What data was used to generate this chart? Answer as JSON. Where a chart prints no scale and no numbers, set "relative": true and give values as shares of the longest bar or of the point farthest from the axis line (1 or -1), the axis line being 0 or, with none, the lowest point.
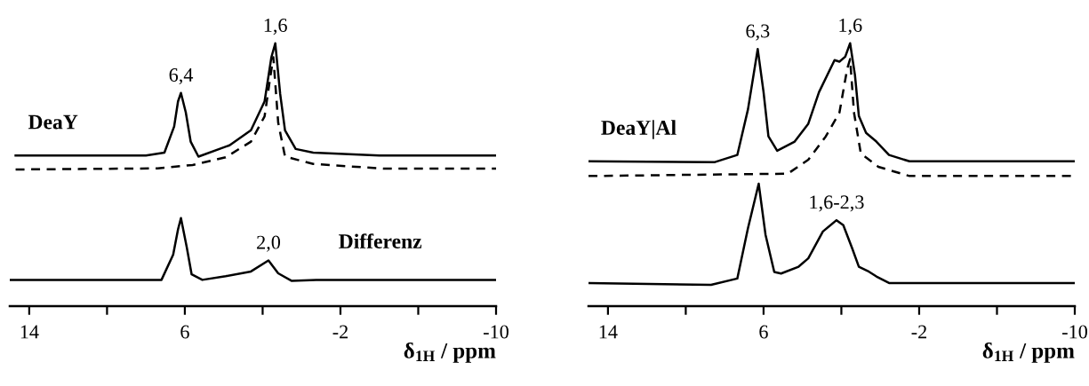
{
  "chart_data": [
    {
      "type": "line",
      "relative": true,
      "xlabel": "δ$_{1H}$ / ppm",
      "xlim": [
        15.0,
        -10
      ],
      "xticks": [
        14,
        {
          "value": 10,
          "label": null
        },
        6,
        {
          "value": 2,
          "label": null
        },
        -2,
        {
          "value": -6,
          "label": null
        },
        -10
      ],
      "series": [
        {
          "name": "DeaY",
          "color": "#000000",
          "line_style": "solid",
          "x": [
            14.7,
            8,
            7.05,
            6.55,
            6.35,
            6.2,
            5.95,
            5.7,
            5.3,
            3.7,
            2.6,
            1.9,
            1.55,
            1.35,
            1.1,
            0.85,
            0.3,
            -0.6,
            -4,
            -10
          ],
          "values": [
            0.573,
            0.573,
            0.584,
            0.683,
            0.779,
            0.811,
            0.737,
            0.626,
            0.569,
            0.612,
            0.669,
            0.779,
            0.947,
            1,
            0.808,
            0.669,
            0.598,
            0.584,
            0.573,
            0.573
          ]
        },
        {
          "color": "#000000",
          "line_style": "dashed",
          "x": [
            14.7,
            7.4,
            5.6,
            3.9,
            2.6,
            1.9,
            1.6,
            1.45,
            1.2,
            0.85,
            -0.6,
            -4.2,
            -10
          ],
          "values": [
            0.52,
            0.524,
            0.537,
            0.566,
            0.626,
            0.722,
            0.875,
            0.947,
            0.698,
            0.569,
            0.541,
            0.523,
            0.523
          ]
        },
        {
          "name": "Differenz",
          "color": "#000000",
          "line_style": "solid",
          "x": [
            15.0,
            7.2,
            6.6,
            6.35,
            6.2,
            5.9,
            5.65,
            5.1,
            3.9,
            2.6,
            1.7,
            1.2,
            0.5,
            -0.75,
            -10
          ],
          "values": [
            0.1,
            0.1,
            0.196,
            0.292,
            0.335,
            0.224,
            0.121,
            0.1,
            0.114,
            0.132,
            0.174,
            0.125,
            0.096,
            0.1,
            0.1
          ]
        }
      ],
      "annotations": [
        {
          "text": "6,4",
          "x": 6.2,
          "y": 0.811
        },
        {
          "text": "1,6",
          "x": 1.35,
          "y": 1
        },
        {
          "text": "2,0",
          "x": 1.7,
          "y": 0.174
        }
      ]
    },
    {
      "type": "line",
      "relative": true,
      "xlabel": "δ$_{1H}$ / ppm",
      "xlim": [
        15.0,
        -10
      ],
      "xticks": [
        14,
        {
          "value": 10,
          "label": null
        },
        6,
        {
          "value": 2,
          "label": null
        },
        -2,
        {
          "value": -6,
          "label": null
        },
        -10
      ],
      "series": [
        {
          "name": "DeaY|Al",
          "color": "#000000",
          "line_style": "solid",
          "x": [
            15.0,
            8.5,
            7.35,
            6.8,
            6.3,
            6.0,
            5.75,
            5.3,
            4.4,
            3.7,
            3.15,
            2.35,
            2.1,
            1.8,
            1.55,
            1.3,
            1.1,
            0.73,
            0.2,
            -0.45,
            -1.5,
            -10
          ],
          "values": [
            0.551,
            0.548,
            0.575,
            0.749,
            0.978,
            0.814,
            0.646,
            0.591,
            0.626,
            0.694,
            0.814,
            0.936,
            0.93,
            0.949,
            1,
            0.878,
            0.723,
            0.659,
            0.626,
            0.575,
            0.551,
            0.551
          ]
        },
        {
          "color": "#000000",
          "line_style": "dashed",
          "x": [
            15.0,
            4.75,
            3.7,
            2.8,
            2.1,
            1.7,
            1.55,
            1.35,
            1.0,
            0.1,
            -1.5,
            -10
          ],
          "values": [
            0.495,
            0.504,
            0.557,
            0.646,
            0.736,
            0.903,
            0.94,
            0.736,
            0.581,
            0.53,
            0.495,
            0.495
          ]
        },
        {
          "color": "#000000",
          "line_style": "solid",
          "x": [
            15.0,
            8.7,
            7.35,
            6.8,
            6.25,
            5.9,
            5.45,
            5.1,
            4.2,
            3.7,
            2.95,
            2.25,
            1.9,
            1.45,
            1.1,
            0.65,
            0.2,
            -0.45,
            -10
          ],
          "values": [
            0.088,
            0.081,
            0.105,
            0.297,
            0.466,
            0.272,
            0.13,
            0.124,
            0.15,
            0.182,
            0.284,
            0.327,
            0.308,
            0.221,
            0.15,
            0.134,
            0.113,
            0.088,
            0.088
          ]
        }
      ],
      "annotations": [
        {
          "text": "6,3",
          "x": 6.3,
          "y": 0.978
        },
        {
          "text": "1,6",
          "x": 1.55,
          "y": 1
        },
        {
          "text": "1,6-2,3",
          "x": 2.25,
          "y": 0.327
        }
      ]
    }
  ]
}
